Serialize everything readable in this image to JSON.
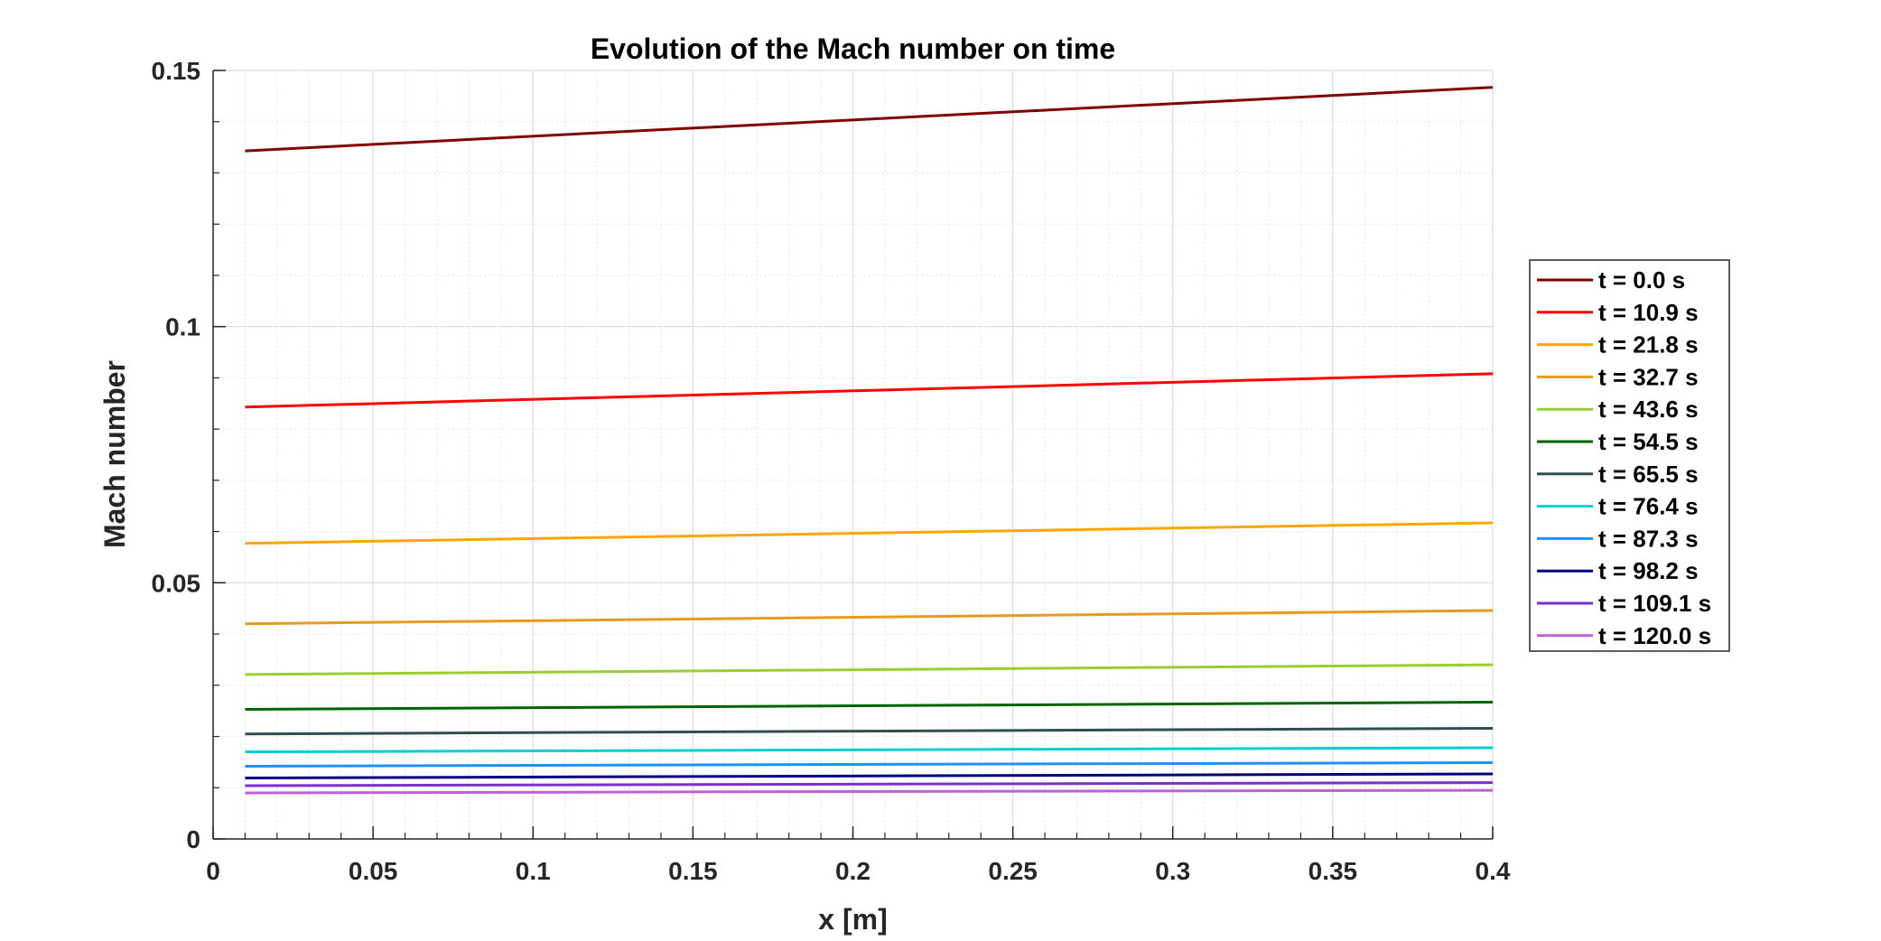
{
  "chart_data": {
    "type": "line",
    "title": "Evolution of the Mach number on time",
    "xlabel": "x [m]",
    "ylabel": "Mach number",
    "xlim": [
      0,
      0.4
    ],
    "ylim": [
      0,
      0.15
    ],
    "x_ticks": [
      0,
      0.05,
      0.1,
      0.15,
      0.2,
      0.25,
      0.3,
      0.35,
      0.4
    ],
    "x_tick_labels": [
      "0",
      "0.05",
      "0.1",
      "0.15",
      "0.2",
      "0.25",
      "0.3",
      "0.35",
      "0.4"
    ],
    "y_ticks": [
      0,
      0.05,
      0.1,
      0.15
    ],
    "y_tick_labels": [
      "0",
      "0.05",
      "0.1",
      "0.15"
    ],
    "grid": true,
    "minor_grid": true,
    "legend_position": "right-outside",
    "x": [
      0.01,
      0.4
    ],
    "series": [
      {
        "name": "t = 0.0 s",
        "color": "#800000",
        "values": [
          0.1343,
          0.1467
        ]
      },
      {
        "name": "t = 10.9 s",
        "color": "#ff0000",
        "values": [
          0.0843,
          0.0908
        ]
      },
      {
        "name": "t = 21.8 s",
        "color": "#ffa500",
        "values": [
          0.0577,
          0.0617
        ]
      },
      {
        "name": "t = 32.7 s",
        "color": "#e69a1e",
        "values": [
          0.042,
          0.0446
        ]
      },
      {
        "name": "t = 43.6 s",
        "color": "#9acd32",
        "values": [
          0.0321,
          0.034
        ]
      },
      {
        "name": "t = 54.5 s",
        "color": "#006400",
        "values": [
          0.0253,
          0.0267
        ]
      },
      {
        "name": "t = 65.5 s",
        "color": "#2f4f4f",
        "values": [
          0.0205,
          0.0216
        ]
      },
      {
        "name": "t = 76.4 s",
        "color": "#00ced1",
        "values": [
          0.017,
          0.0178
        ]
      },
      {
        "name": "t = 87.3 s",
        "color": "#1e90ff",
        "values": [
          0.0142,
          0.0149
        ]
      },
      {
        "name": "t = 98.2 s",
        "color": "#000080",
        "values": [
          0.0119,
          0.0127
        ]
      },
      {
        "name": "t = 109.1 s",
        "color": "#7b2fd0",
        "values": [
          0.0104,
          0.011
        ]
      },
      {
        "name": "t = 120.0 s",
        "color": "#c060d8",
        "values": [
          0.009,
          0.0095
        ]
      }
    ]
  }
}
